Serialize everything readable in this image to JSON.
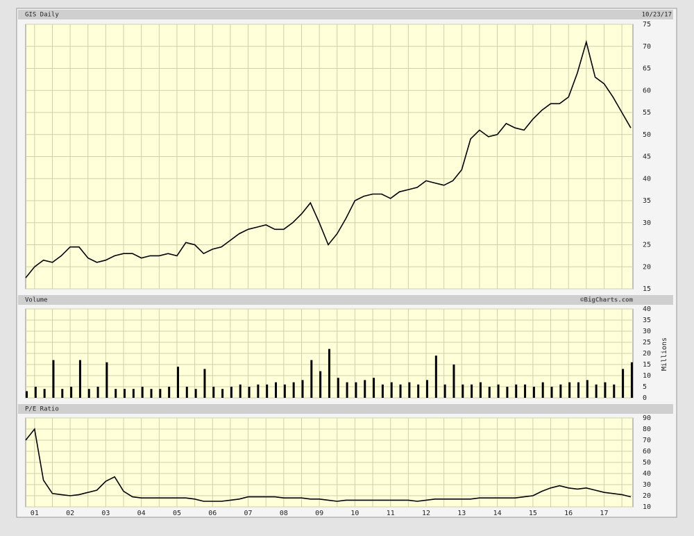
{
  "chart_data": [
    {
      "type": "line",
      "title": "GIS Daily",
      "date": "10/23/17",
      "color": "#000000",
      "x": [
        2000.75,
        2001,
        2001.25,
        2001.5,
        2001.75,
        2002,
        2002.25,
        2002.5,
        2002.75,
        2003,
        2003.25,
        2003.5,
        2003.75,
        2004,
        2004.25,
        2004.5,
        2004.75,
        2005,
        2005.25,
        2005.5,
        2005.75,
        2006,
        2006.25,
        2006.5,
        2006.75,
        2007,
        2007.25,
        2007.5,
        2007.75,
        2008,
        2008.25,
        2008.5,
        2008.75,
        2009,
        2009.25,
        2009.5,
        2009.75,
        2010,
        2010.25,
        2010.5,
        2010.75,
        2011,
        2011.25,
        2011.5,
        2011.75,
        2012,
        2012.25,
        2012.5,
        2012.75,
        2013,
        2013.25,
        2013.5,
        2013.75,
        2014,
        2014.25,
        2014.5,
        2014.75,
        2015,
        2015.25,
        2015.5,
        2015.75,
        2016,
        2016.25,
        2016.5,
        2016.75,
        2017,
        2017.25,
        2017.5,
        2017.75
      ],
      "values": [
        17.5,
        20,
        21.5,
        21,
        22.5,
        24.5,
        24.5,
        22,
        21,
        21.5,
        22.5,
        23,
        23,
        22,
        22.5,
        22.5,
        23,
        22.5,
        25.5,
        25,
        23,
        24,
        24.5,
        26,
        27.5,
        28.5,
        29,
        29.5,
        28.5,
        28.5,
        30,
        32,
        34.5,
        30,
        25,
        27.5,
        31,
        35,
        36,
        36.5,
        36.5,
        35.5,
        37,
        37.5,
        38,
        39.5,
        39,
        38.5,
        39.5,
        42,
        49,
        51,
        49.5,
        50,
        52.5,
        51.5,
        51,
        53.5,
        55.5,
        57,
        57,
        58.5,
        64,
        71,
        63,
        61.5,
        58.5,
        55,
        51.5
      ],
      "xlim": [
        2000.75,
        2017.81
      ],
      "ylim": [
        15,
        75
      ],
      "yticks": [
        15,
        20,
        25,
        30,
        35,
        40,
        45,
        50,
        55,
        60,
        65,
        70,
        75
      ],
      "grid": true
    },
    {
      "type": "bar",
      "title": "Volume",
      "credit": "©BigCharts.com",
      "ylabel": "Millions",
      "color": "#000000",
      "x": [
        2000.75,
        2001,
        2001.25,
        2001.5,
        2001.75,
        2002,
        2002.25,
        2002.5,
        2002.75,
        2003,
        2003.25,
        2003.5,
        2003.75,
        2004,
        2004.25,
        2004.5,
        2004.75,
        2005,
        2005.25,
        2005.5,
        2005.75,
        2006,
        2006.25,
        2006.5,
        2006.75,
        2007,
        2007.25,
        2007.5,
        2007.75,
        2008,
        2008.25,
        2008.5,
        2008.75,
        2009,
        2009.25,
        2009.5,
        2009.75,
        2010,
        2010.25,
        2010.5,
        2010.75,
        2011,
        2011.25,
        2011.5,
        2011.75,
        2012,
        2012.25,
        2012.5,
        2012.75,
        2013,
        2013.25,
        2013.5,
        2013.75,
        2014,
        2014.25,
        2014.5,
        2014.75,
        2015,
        2015.25,
        2015.5,
        2015.75,
        2016,
        2016.25,
        2016.5,
        2016.75,
        2017,
        2017.25,
        2017.5,
        2017.75
      ],
      "values": [
        3,
        5,
        4,
        17,
        4,
        5,
        17,
        4,
        5,
        16,
        4,
        4,
        4,
        5,
        4,
        4,
        5,
        14,
        5,
        4,
        13,
        5,
        4,
        5,
        6,
        5,
        6,
        6,
        7,
        6,
        7,
        8,
        17,
        12,
        22,
        9,
        7,
        7,
        8,
        9,
        6,
        7,
        6,
        7,
        6,
        8,
        19,
        6,
        15,
        6,
        6,
        7,
        5,
        6,
        5,
        6,
        6,
        5,
        7,
        5,
        6,
        7,
        7,
        8,
        6,
        7,
        6,
        13,
        16
      ],
      "xlim": [
        2000.75,
        2017.81
      ],
      "ylim": [
        0,
        40
      ],
      "yticks": [
        0,
        5,
        10,
        15,
        20,
        25,
        30,
        35,
        40
      ],
      "grid": true
    },
    {
      "type": "line",
      "title": "P/E Ratio",
      "color": "#000000",
      "x": [
        2000.75,
        2001,
        2001.25,
        2001.5,
        2001.75,
        2002,
        2002.25,
        2002.5,
        2002.75,
        2003,
        2003.25,
        2003.5,
        2003.75,
        2004,
        2004.25,
        2004.5,
        2004.75,
        2005,
        2005.25,
        2005.5,
        2005.75,
        2006,
        2006.25,
        2006.5,
        2006.75,
        2007,
        2007.25,
        2007.5,
        2007.75,
        2008,
        2008.25,
        2008.5,
        2008.75,
        2009,
        2009.25,
        2009.5,
        2009.75,
        2010,
        2010.25,
        2010.5,
        2010.75,
        2011,
        2011.25,
        2011.5,
        2011.75,
        2012,
        2012.25,
        2012.5,
        2012.75,
        2013,
        2013.25,
        2013.5,
        2013.75,
        2014,
        2014.25,
        2014.5,
        2014.75,
        2015,
        2015.25,
        2015.5,
        2015.75,
        2016,
        2016.25,
        2016.5,
        2016.75,
        2017,
        2017.25,
        2017.5,
        2017.75
      ],
      "values": [
        70,
        80,
        34,
        22,
        21,
        20,
        21,
        23,
        25,
        33,
        37,
        24,
        19,
        18,
        18,
        18,
        18,
        18,
        18,
        17,
        15,
        15,
        15,
        16,
        17,
        19,
        19,
        19,
        19,
        18,
        18,
        18,
        17,
        17,
        16,
        15,
        16,
        16,
        16,
        16,
        16,
        16,
        16,
        16,
        15,
        16,
        17,
        17,
        17,
        17,
        17,
        18,
        18,
        18,
        18,
        18,
        19,
        20,
        24,
        27,
        29,
        27,
        26,
        27,
        25,
        23,
        22,
        21,
        19
      ],
      "xlim": [
        2000.75,
        2017.81
      ],
      "ylim": [
        10,
        90
      ],
      "yticks": [
        10,
        20,
        30,
        40,
        50,
        60,
        70,
        80,
        90
      ],
      "grid": true,
      "xticks": [
        {
          "value": 2001,
          "label": "01"
        },
        {
          "value": 2002,
          "label": "02"
        },
        {
          "value": 2003,
          "label": "03"
        },
        {
          "value": 2004,
          "label": "04"
        },
        {
          "value": 2005,
          "label": "05"
        },
        {
          "value": 2006,
          "label": "06"
        },
        {
          "value": 2007,
          "label": "07"
        },
        {
          "value": 2008,
          "label": "08"
        },
        {
          "value": 2009,
          "label": "09"
        },
        {
          "value": 2010,
          "label": "10"
        },
        {
          "value": 2011,
          "label": "11"
        },
        {
          "value": 2012,
          "label": "12"
        },
        {
          "value": 2013,
          "label": "13"
        },
        {
          "value": 2014,
          "label": "14"
        },
        {
          "value": 2015,
          "label": "15"
        },
        {
          "value": 2016,
          "label": "16"
        },
        {
          "value": 2017,
          "label": "17"
        }
      ],
      "xminorticks": [
        2001.5,
        2002.5,
        2003.5,
        2004.5,
        2005.5,
        2006.5,
        2007.5,
        2008.5,
        2009.5,
        2010.5,
        2011.5,
        2012.5,
        2013.5,
        2014.5,
        2015.5,
        2016.5,
        2017.5
      ]
    }
  ]
}
